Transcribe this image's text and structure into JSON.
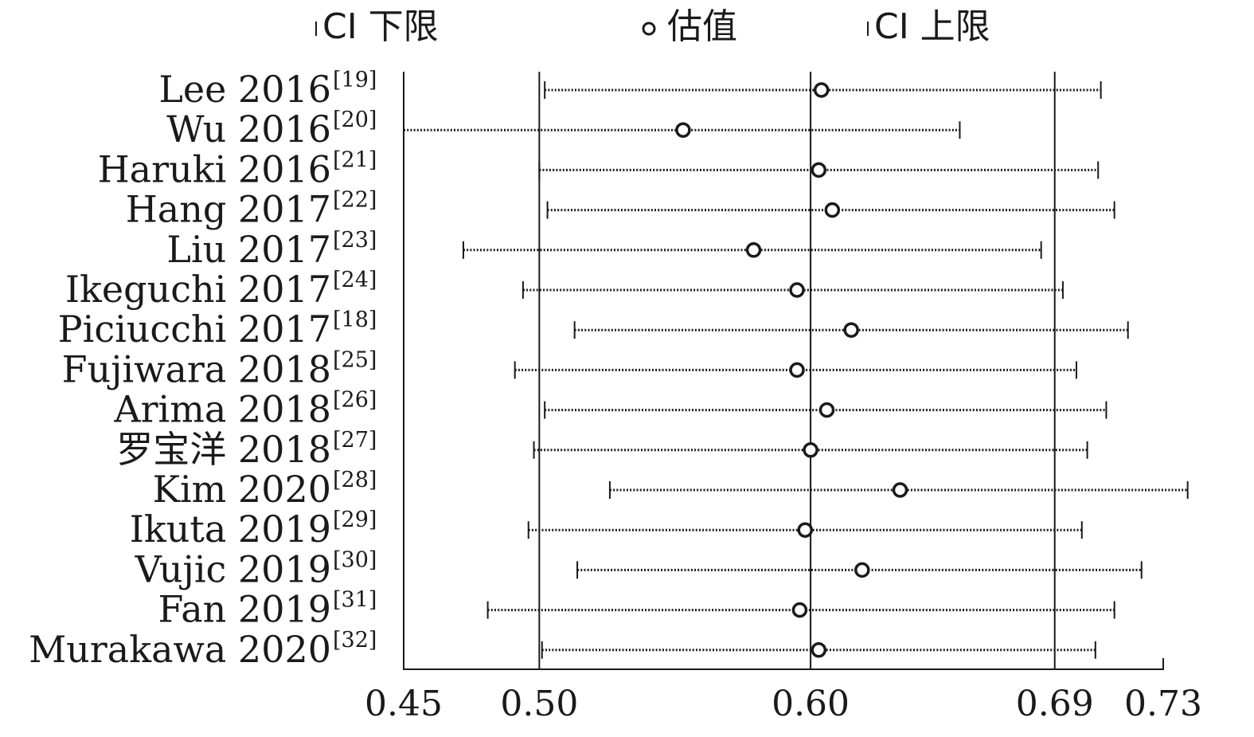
{
  "legend": {
    "lower": "CI 下限",
    "estimate": "估值",
    "upper": "CI 上限"
  },
  "chart_data": {
    "type": "forest",
    "xlim": [
      0.45,
      0.73
    ],
    "x_ticks": [
      "0.45",
      "0.50",
      "0.60",
      "0.69",
      "0.73"
    ],
    "reference_lines": [
      0.5,
      0.6,
      0.69
    ],
    "studies": [
      {
        "label": "Lee 2016",
        "ref": "[19]",
        "lower": 0.502,
        "estimate": 0.604,
        "upper": 0.707
      },
      {
        "label": "Wu 2016",
        "ref": "[20]",
        "lower": 0.45,
        "estimate": 0.553,
        "upper": 0.655
      },
      {
        "label": "Haruki 2016",
        "ref": "[21]",
        "lower": 0.5,
        "estimate": 0.603,
        "upper": 0.706
      },
      {
        "label": "Hang 2017",
        "ref": "[22]",
        "lower": 0.503,
        "estimate": 0.608,
        "upper": 0.712
      },
      {
        "label": "Liu 2017",
        "ref": "[23]",
        "lower": 0.472,
        "estimate": 0.579,
        "upper": 0.685
      },
      {
        "label": "Ikeguchi 2017",
        "ref": "[24]",
        "lower": 0.494,
        "estimate": 0.595,
        "upper": 0.693
      },
      {
        "label": "Piciucchi 2017",
        "ref": "[18]",
        "lower": 0.513,
        "estimate": 0.615,
        "upper": 0.717
      },
      {
        "label": "Fujiwara 2018",
        "ref": "[25]",
        "lower": 0.491,
        "estimate": 0.595,
        "upper": 0.698
      },
      {
        "label": "Arima 2018",
        "ref": "[26]",
        "lower": 0.502,
        "estimate": 0.606,
        "upper": 0.709
      },
      {
        "label": "罗宝洋 2018",
        "ref": "[27]",
        "lower": 0.498,
        "estimate": 0.6,
        "upper": 0.702
      },
      {
        "label": "Kim 2020",
        "ref": "[28]",
        "lower": 0.526,
        "estimate": 0.633,
        "upper": 0.739
      },
      {
        "label": "Ikuta 2019",
        "ref": "[29]",
        "lower": 0.496,
        "estimate": 0.598,
        "upper": 0.7
      },
      {
        "label": "Vujic 2019",
        "ref": "[30]",
        "lower": 0.514,
        "estimate": 0.619,
        "upper": 0.722
      },
      {
        "label": "Fan 2019",
        "ref": "[31]",
        "lower": 0.481,
        "estimate": 0.596,
        "upper": 0.712
      },
      {
        "label": "Murakawa 2020",
        "ref": "[32]",
        "lower": 0.501,
        "estimate": 0.603,
        "upper": 0.705
      }
    ]
  }
}
